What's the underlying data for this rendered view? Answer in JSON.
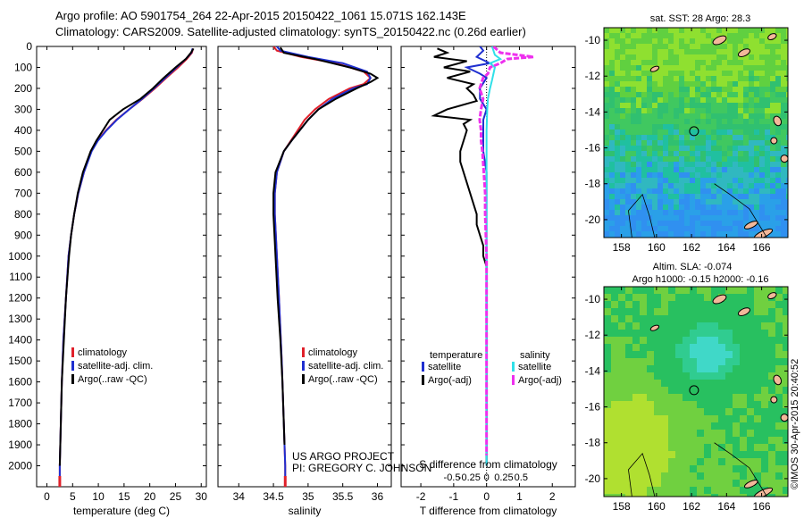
{
  "header": {
    "line1": "Argo profile: AO 5901754_264 22-Apr-2015 20150422_1061 15.071S 162.143E",
    "line2": "Climatology: CARS2009. Satellite-adjusted climatology: synTS_20150422.nc (0.26d earlier)"
  },
  "colors": {
    "climatology": "#e0202a",
    "satellite": "#1f2fd0",
    "argo": "#000000",
    "salinity_satellite": "#30e0e8",
    "salinity_argo": "#ee30ee"
  },
  "credits": {
    "project": "US ARGO PROJECT",
    "pi": "PI: GREGORY C. JOHNSON",
    "stamp": "©IMOS 30-Apr-2015 20:40:52"
  },
  "chart_data": [
    {
      "type": "line",
      "name": "temperature-profile",
      "xlabel": "temperature (deg C)",
      "xlim": [
        -2,
        31
      ],
      "ylim": [
        2100,
        0
      ],
      "xticks": [
        0,
        5,
        10,
        15,
        20,
        25,
        30
      ],
      "yticks": [
        0,
        100,
        200,
        300,
        400,
        500,
        600,
        700,
        800,
        900,
        1000,
        1100,
        1200,
        1300,
        1400,
        1500,
        1600,
        1700,
        1800,
        1900,
        2000
      ],
      "legend": [
        "climatology",
        "satellite-adj. clim.",
        "Argo(..raw -QC)"
      ],
      "series": [
        {
          "name": "climatology",
          "color": "red",
          "pressure": [
            10,
            30,
            60,
            100,
            150,
            200,
            250,
            300,
            350,
            400,
            450,
            500,
            600,
            700,
            800,
            900,
            1000,
            1200,
            1400,
            1600,
            1800,
            2000,
            2050
          ],
          "values": [
            28.4,
            28.2,
            27.2,
            25.5,
            23.2,
            21.0,
            18.6,
            16.0,
            13.5,
            11.5,
            9.8,
            8.6,
            7.2,
            6.1,
            5.3,
            4.7,
            4.2,
            3.7,
            3.2,
            2.9,
            2.7,
            2.5,
            2.5
          ]
        },
        {
          "name": "satellite-adj. clim.",
          "color": "blue",
          "pressure": [
            10,
            30,
            60,
            100,
            150,
            200,
            250,
            300,
            350,
            400,
            450,
            500,
            600,
            700,
            800,
            900,
            1000,
            1200,
            1400,
            1600,
            1800,
            2000,
            2050
          ],
          "values": [
            28.3,
            28.1,
            27.0,
            25.2,
            23.0,
            20.8,
            18.5,
            16.0,
            13.6,
            11.6,
            9.9,
            8.7,
            7.2,
            6.1,
            5.3,
            4.7,
            4.2,
            3.7,
            3.2,
            2.9,
            2.7,
            2.5,
            2.5
          ]
        },
        {
          "name": "Argo(..raw -QC)",
          "color": "black",
          "pressure": [
            10,
            30,
            60,
            100,
            150,
            200,
            250,
            300,
            350,
            400,
            450,
            500,
            600,
            700,
            800,
            900,
            1000,
            1100,
            1200,
            1300,
            1400,
            1500,
            1600,
            1700,
            1800,
            1900,
            2000
          ],
          "values": [
            28.5,
            28.0,
            27.0,
            25.0,
            22.7,
            20.6,
            18.2,
            14.8,
            12.2,
            10.9,
            9.6,
            8.5,
            7.0,
            6.0,
            5.3,
            4.7,
            4.3,
            4.0,
            3.7,
            3.5,
            3.3,
            3.1,
            2.9,
            2.8,
            2.7,
            2.6,
            2.5
          ]
        }
      ]
    },
    {
      "type": "line",
      "name": "salinity-profile",
      "xlabel": "salinity",
      "xlim": [
        33.7,
        36.2
      ],
      "ylim": [
        2100,
        0
      ],
      "xticks": [
        34,
        34.5,
        35,
        35.5,
        36
      ],
      "legend": [
        "climatology",
        "satellite-adj. clim.",
        "Argo(..raw -QC)"
      ],
      "series": [
        {
          "name": "climatology",
          "color": "red",
          "pressure": [
            0,
            20,
            50,
            80,
            120,
            150,
            180,
            200,
            250,
            300,
            350,
            400,
            450,
            500,
            600,
            700,
            800,
            1000,
            1200,
            1500,
            1800,
            2000,
            2050
          ],
          "values": [
            34.5,
            34.55,
            34.9,
            35.4,
            35.8,
            35.9,
            35.8,
            35.6,
            35.3,
            35.1,
            34.95,
            34.85,
            34.75,
            34.65,
            34.55,
            34.52,
            34.52,
            34.55,
            34.58,
            34.62,
            34.65,
            34.67,
            34.67
          ]
        },
        {
          "name": "satellite-adj. clim.",
          "color": "blue",
          "pressure": [
            0,
            20,
            50,
            80,
            120,
            150,
            180,
            200,
            250,
            300,
            350,
            400,
            450,
            500,
            600,
            700,
            800,
            1000,
            1200,
            1500,
            1800,
            2000,
            2050
          ],
          "values": [
            34.55,
            34.6,
            35.0,
            35.5,
            35.85,
            35.9,
            35.85,
            35.65,
            35.35,
            35.15,
            35.0,
            34.88,
            34.76,
            34.65,
            34.55,
            34.52,
            34.52,
            34.55,
            34.58,
            34.62,
            34.65,
            34.67,
            34.67
          ]
        },
        {
          "name": "Argo(..raw -QC)",
          "color": "black",
          "pressure": [
            5,
            30,
            60,
            100,
            130,
            150,
            170,
            200,
            250,
            300,
            350,
            400,
            450,
            500,
            600,
            700,
            800,
            1000,
            1200,
            1400,
            1600,
            1800,
            1900
          ],
          "values": [
            34.6,
            34.65,
            35.1,
            35.6,
            35.9,
            36.0,
            35.9,
            35.7,
            35.4,
            35.15,
            35.0,
            34.88,
            34.76,
            34.65,
            34.53,
            34.5,
            34.5,
            34.53,
            34.56,
            34.6,
            34.63,
            34.65,
            34.66
          ]
        }
      ]
    },
    {
      "type": "line",
      "name": "difference-profile",
      "xlabel": "T difference from climatology",
      "xlabel_top": "S difference from climatology",
      "xlim": [
        -2.6,
        2.7
      ],
      "ylim": [
        2100,
        0
      ],
      "xticks": [
        -2,
        -1,
        0,
        1,
        2
      ],
      "xticks_salinity": [
        "-0.5",
        "-0.25",
        "0",
        "0.25",
        "0.5"
      ],
      "xticks_salinity_values": [
        -0.5,
        -0.25,
        0,
        0.25,
        0.5
      ],
      "legend": {
        "temperature": [
          "satellite",
          "Argo(-adj)"
        ],
        "salinity": [
          "satellite",
          "Argo(-adj)"
        ]
      },
      "legend_titles": {
        "temperature": "temperature",
        "salinity": "salinity"
      },
      "series": [
        {
          "name": "T satellite",
          "color": "blue",
          "pressure": [
            0,
            20,
            50,
            80,
            100,
            130,
            150,
            200,
            250,
            300,
            350,
            400,
            450,
            500,
            600,
            700,
            800,
            1000,
            1200,
            1500,
            1800,
            2000
          ],
          "values": [
            -0.2,
            -0.1,
            -0.3,
            0.1,
            -0.6,
            -0.2,
            0.0,
            -0.2,
            -0.2,
            0.0,
            -0.1,
            -0.1,
            -0.1,
            -0.1,
            0.0,
            0.0,
            0.0,
            0.0,
            0.0,
            0.0,
            0.0,
            0.0
          ]
        },
        {
          "name": "T Argo(-adj)",
          "color": "black",
          "pressure": [
            10,
            30,
            50,
            70,
            100,
            120,
            150,
            180,
            200,
            230,
            260,
            300,
            330,
            350,
            370,
            400,
            450,
            500,
            550,
            600,
            650,
            700,
            750,
            800,
            850,
            900,
            950,
            1000,
            1050,
            1100,
            1200,
            1400,
            1600,
            1800,
            2000
          ],
          "values": [
            -1.5,
            -1.2,
            -1.6,
            -0.6,
            -1.3,
            -0.5,
            -1.2,
            -0.4,
            -0.6,
            -0.4,
            -0.3,
            -1.2,
            -1.6,
            -0.5,
            -0.7,
            -0.6,
            -0.7,
            -0.8,
            -0.8,
            -0.7,
            -0.6,
            -0.5,
            -0.4,
            -0.3,
            -0.3,
            -0.2,
            -0.1,
            -0.1,
            0.0,
            0.0,
            0.0,
            0.0,
            0.0,
            0.0,
            0.0
          ]
        },
        {
          "name": "S satellite",
          "color": "cyan",
          "pressure": [
            0,
            20,
            40,
            60,
            80,
            100,
            130,
            160,
            200,
            250,
            300,
            400,
            500,
            600,
            800,
            1000,
            1200,
            1500,
            1800,
            2000
          ],
          "values": [
            0.08,
            0.1,
            0.12,
            0.2,
            0.05,
            0.12,
            0.1,
            0.08,
            0.05,
            0.02,
            0.01,
            0.0,
            0.0,
            0.0,
            0.0,
            0.0,
            0.0,
            0.0,
            0.0,
            0.0
          ]
        },
        {
          "name": "S Argo(-adj)",
          "color": "magenta",
          "pressure": [
            0,
            30,
            50,
            60,
            80,
            100,
            130,
            150,
            200,
            250,
            300,
            350,
            400,
            450,
            500,
            550,
            600,
            650,
            700,
            800,
            900,
            1000,
            1200,
            1500,
            1800,
            1950
          ],
          "values": [
            0.1,
            0.2,
            0.68,
            0.3,
            0.2,
            0.05,
            0.02,
            -0.05,
            -0.1,
            -0.05,
            -0.08,
            -0.1,
            -0.08,
            -0.08,
            -0.06,
            -0.05,
            -0.04,
            -0.03,
            -0.02,
            -0.02,
            -0.01,
            0.0,
            0.0,
            0.0,
            0.0,
            0.0
          ]
        }
      ]
    },
    {
      "type": "heatmap",
      "name": "sst-map",
      "title": "sat. SST: 28 Argo: 28.3",
      "xlim": [
        157,
        167.5
      ],
      "ylim": [
        -21,
        -9.3
      ],
      "xticks": [
        158,
        160,
        162,
        164,
        166
      ],
      "yticks": [
        -10,
        -12,
        -14,
        -16,
        -18,
        -20
      ],
      "marker": {
        "lon": 162.143,
        "lat": -15.071
      }
    },
    {
      "type": "heatmap",
      "name": "sla-map",
      "title": "Altim. SLA: -0.074",
      "subtitle": "Argo h1000: -0.15 h2000: -0.16",
      "xlim": [
        157,
        167.5
      ],
      "ylim": [
        -21,
        -9.3
      ],
      "xticks": [
        158,
        160,
        162,
        164,
        166
      ],
      "yticks": [
        -10,
        -12,
        -14,
        -16,
        -18,
        -20
      ],
      "marker": {
        "lon": 162.143,
        "lat": -15.071
      }
    }
  ]
}
